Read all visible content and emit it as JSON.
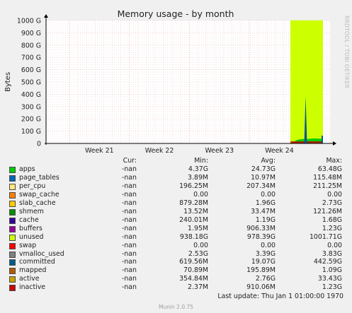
{
  "chart_data": {
    "type": "area",
    "title": "Memory usage - by month",
    "ylabel": "Bytes",
    "side_label": "RRDTOOL / TOBI OETIKER",
    "yticks": [
      "0",
      "100 G",
      "200 G",
      "300 G",
      "400 G",
      "500 G",
      "600 G",
      "700 G",
      "800 G",
      "900 G",
      "1000 G"
    ],
    "ylim": [
      0,
      1000
    ],
    "xticks": [
      "Week 21",
      "Week 22",
      "Week 23",
      "Week 24"
    ],
    "grid": true,
    "series": [
      {
        "name": "unused",
        "color": "#ccff00",
        "values": [
          1001
        ]
      },
      {
        "name": "apps",
        "color": "#00cc00",
        "values": [
          30,
          35,
          36,
          36,
          40,
          40,
          38,
          40
        ]
      },
      {
        "name": "committed",
        "color": "#005a8a",
        "values": [
          385,
          63
        ]
      }
    ]
  },
  "legend": {
    "headers": {
      "cur": "Cur:",
      "min": "Min:",
      "avg": "Avg:",
      "max": "Max:"
    },
    "rows": [
      {
        "name": "apps",
        "color": "#00cc00",
        "cur": "-nan",
        "min": "4.37G",
        "avg": "24.73G",
        "max": "63.48G"
      },
      {
        "name": "page_tables",
        "color": "#0066b3",
        "cur": "-nan",
        "min": "3.89M",
        "avg": "10.97M",
        "max": "115.48M"
      },
      {
        "name": "per_cpu",
        "color": "#ffe680",
        "cur": "-nan",
        "min": "196.25M",
        "avg": "207.34M",
        "max": "211.25M"
      },
      {
        "name": "swap_cache",
        "color": "#ff8000",
        "cur": "-nan",
        "min": "0.00",
        "avg": "0.00",
        "max": "0.00"
      },
      {
        "name": "slab_cache",
        "color": "#ffcc00",
        "cur": "-nan",
        "min": "879.28M",
        "avg": "1.96G",
        "max": "2.73G"
      },
      {
        "name": "shmem",
        "color": "#008f00",
        "cur": "-nan",
        "min": "13.52M",
        "avg": "33.47M",
        "max": "121.26M"
      },
      {
        "name": "cache",
        "color": "#330099",
        "cur": "-nan",
        "min": "240.01M",
        "avg": "1.19G",
        "max": "1.68G"
      },
      {
        "name": "buffers",
        "color": "#990099",
        "cur": "-nan",
        "min": "1.95M",
        "avg": "906.33M",
        "max": "1.23G"
      },
      {
        "name": "unused",
        "color": "#ccff00",
        "cur": "-nan",
        "min": "938.18G",
        "avg": "978.39G",
        "max": "1001.71G"
      },
      {
        "name": "swap",
        "color": "#ff0000",
        "cur": "-nan",
        "min": "0.00",
        "avg": "0.00",
        "max": "0.00"
      },
      {
        "name": "vmalloc_used",
        "color": "#808080",
        "cur": "-nan",
        "min": "2.53G",
        "avg": "3.39G",
        "max": "3.83G"
      },
      {
        "name": "committed",
        "color": "#005a8a",
        "cur": "-nan",
        "min": "619.56M",
        "avg": "19.07G",
        "max": "442.59G"
      },
      {
        "name": "mapped",
        "color": "#b35a00",
        "cur": "-nan",
        "min": "70.89M",
        "avg": "195.89M",
        "max": "1.09G"
      },
      {
        "name": "active",
        "color": "#c8a000",
        "cur": "-nan",
        "min": "354.84M",
        "avg": "2.76G",
        "max": "33.43G"
      },
      {
        "name": "inactive",
        "color": "#cc0000",
        "cur": "-nan",
        "min": "2.37M",
        "avg": "910.06M",
        "max": "1.23G"
      }
    ]
  },
  "footer": {
    "last_update": "Last update: Thu Jan  1 01:00:00 1970",
    "munin": "Munin 2.0.75"
  }
}
